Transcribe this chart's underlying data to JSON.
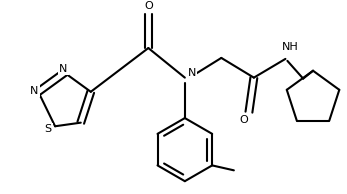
{
  "background_color": "#ffffff",
  "line_color": "#000000",
  "line_width": 1.5,
  "figsize": [
    3.47,
    1.94
  ],
  "dpi": 100,
  "xlim": [
    0,
    347
  ],
  "ylim": [
    0,
    194
  ]
}
